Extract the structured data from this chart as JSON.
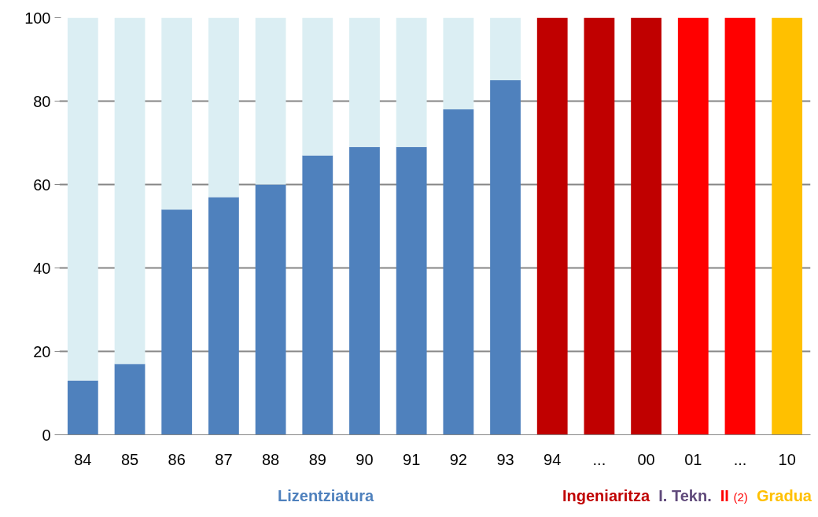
{
  "chart_data": {
    "type": "bar",
    "stacked": true,
    "categories": [
      "84",
      "85",
      "86",
      "87",
      "88",
      "89",
      "90",
      "91",
      "92",
      "93",
      "94",
      "...",
      "00",
      "01",
      "...",
      "10"
    ],
    "series": [
      {
        "name": "Lizentziatura",
        "color": "#4f81bd",
        "values": [
          13,
          17,
          54,
          57,
          60,
          67,
          69,
          69,
          78,
          85,
          null,
          null,
          null,
          null,
          null,
          null
        ]
      },
      {
        "color": "#dbeef3",
        "values": [
          87,
          83,
          46,
          43,
          40,
          33,
          31,
          31,
          22,
          15,
          null,
          null,
          null,
          null,
          null,
          null
        ]
      },
      {
        "name": "Ingeniaritza",
        "color": "#c00000",
        "values": [
          null,
          null,
          null,
          null,
          null,
          null,
          null,
          null,
          null,
          null,
          100,
          100,
          100,
          null,
          null,
          null
        ]
      },
      {
        "name": "I. Tekn.",
        "color": "#604a7b",
        "values": [
          null,
          null,
          null,
          null,
          null,
          null,
          null,
          null,
          null,
          null,
          null,
          null,
          null,
          null,
          null,
          null
        ]
      },
      {
        "name": "II",
        "color": "#ff0000",
        "values": [
          null,
          null,
          null,
          null,
          null,
          null,
          null,
          null,
          null,
          null,
          null,
          null,
          null,
          100,
          100,
          null
        ]
      },
      {
        "name": "Gradua",
        "color": "#ffc000",
        "values": [
          null,
          null,
          null,
          null,
          null,
          null,
          null,
          null,
          null,
          null,
          null,
          null,
          null,
          null,
          null,
          100
        ]
      }
    ],
    "annotations": [
      "(2)"
    ],
    "ylim": [
      0,
      100
    ],
    "yticks": [
      0,
      20,
      40,
      60,
      80,
      100
    ],
    "grid": "y",
    "legend": "bottom"
  }
}
